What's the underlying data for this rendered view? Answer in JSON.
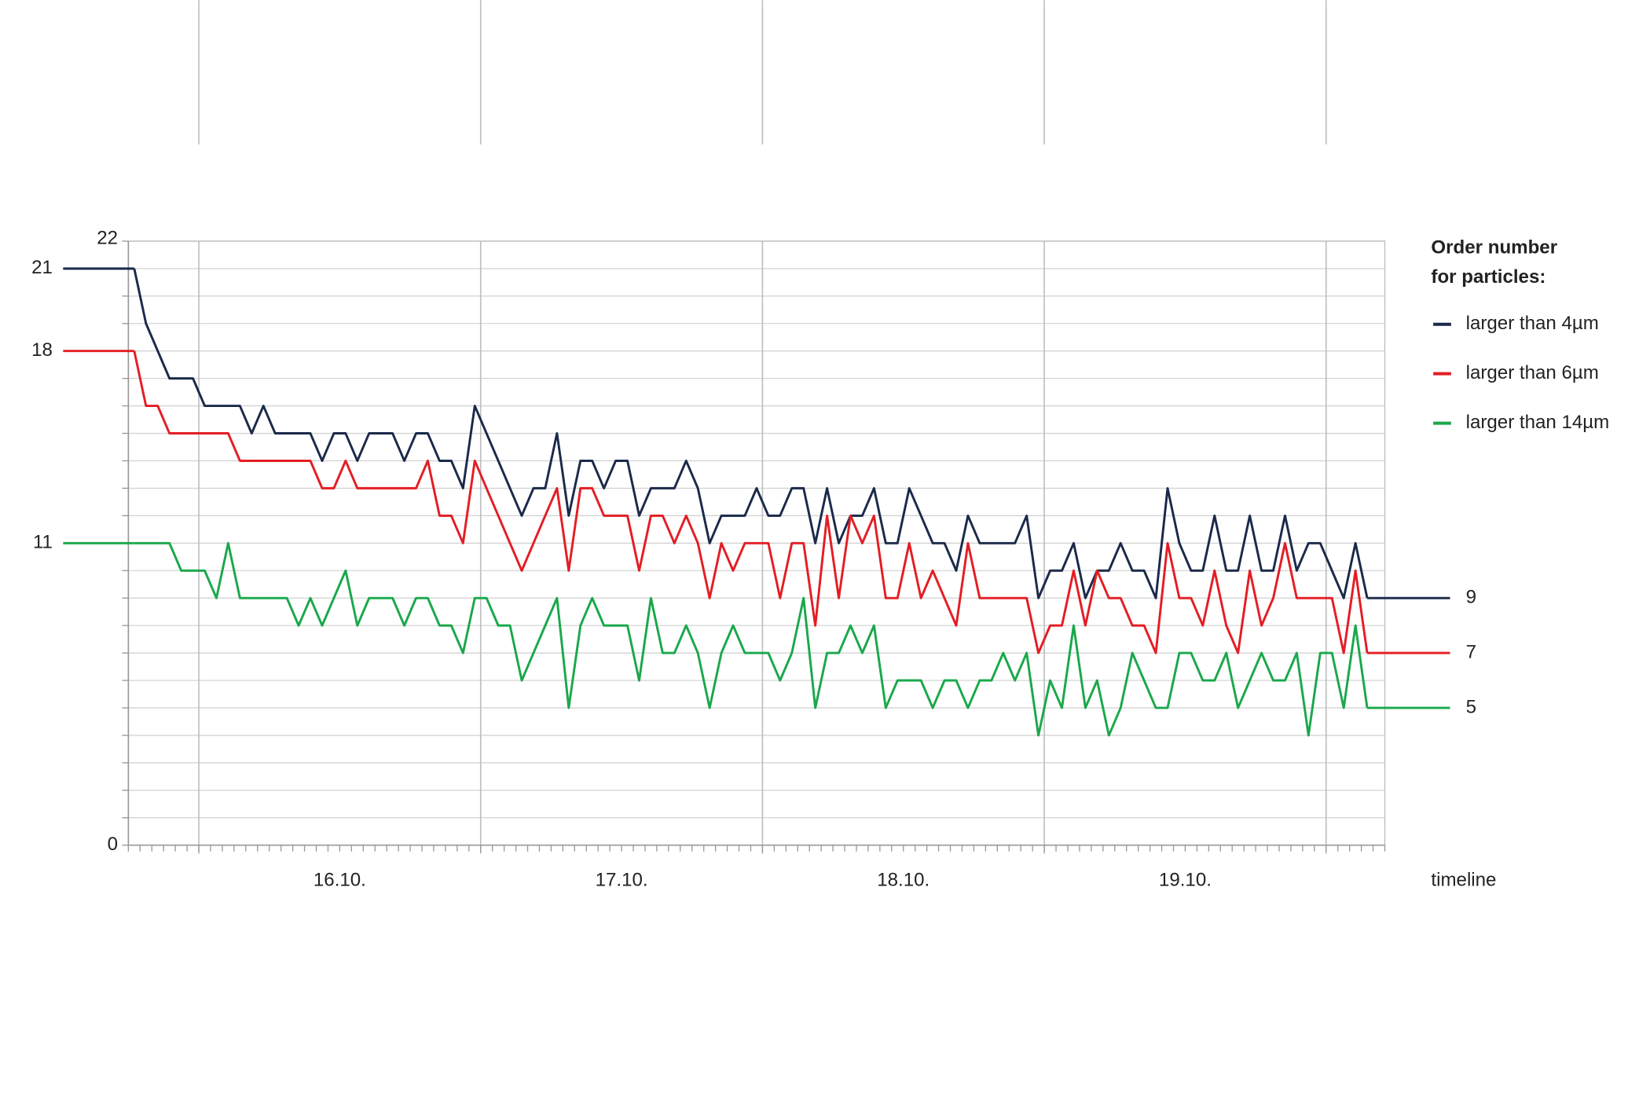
{
  "chart_data": {
    "type": "line",
    "x_label": "timeline",
    "legend_title": [
      "Order number",
      "for particles:"
    ],
    "legend": "right",
    "xlim": [
      0,
      107
    ],
    "xticks": [
      {
        "value": 18,
        "label": "16.10."
      },
      {
        "value": 42,
        "label": "17.10."
      },
      {
        "value": 66,
        "label": "18.10."
      },
      {
        "value": 90,
        "label": "19.10."
      }
    ],
    "xgrid": [
      6,
      30,
      54,
      78,
      102
    ],
    "xminor_step": 1,
    "ylim": [
      0,
      22
    ],
    "yticks": [
      0,
      11,
      18,
      21,
      22
    ],
    "ygrid_step": 1,
    "grid": true,
    "end_labels": true,
    "x": [
      0.5,
      1.5,
      2.5,
      3.5,
      4.5,
      5.5,
      6.5,
      7.5,
      8.5,
      9.5,
      10.5,
      11.5,
      12.5,
      13.5,
      14.5,
      15.5,
      16.5,
      17.5,
      18.5,
      19.5,
      20.5,
      21.5,
      22.5,
      23.5,
      24.5,
      25.5,
      26.5,
      27.5,
      28.5,
      29.5,
      30.5,
      31.5,
      32.5,
      33.5,
      34.5,
      35.5,
      36.5,
      37.5,
      38.5,
      39.5,
      40.5,
      41.5,
      42.5,
      43.5,
      44.5,
      45.5,
      46.5,
      47.5,
      48.5,
      49.5,
      50.5,
      51.5,
      52.5,
      53.5,
      54.5,
      55.5,
      56.5,
      57.5,
      58.5,
      59.5,
      60.5,
      61.5,
      62.5,
      63.5,
      64.5,
      65.5,
      66.5,
      67.5,
      68.5,
      69.5,
      70.5,
      71.5,
      72.5,
      73.5,
      74.5,
      75.5,
      76.5,
      77.5,
      78.5,
      79.5,
      80.5,
      81.5,
      82.5,
      83.5,
      84.5,
      85.5,
      86.5,
      87.5,
      88.5,
      89.5,
      90.5,
      91.5,
      92.5,
      93.5,
      94.5,
      95.5,
      96.5,
      97.5,
      98.5,
      99.5,
      100.5,
      101.5,
      102.5,
      103.5,
      104.5,
      105.5
    ],
    "series": [
      {
        "name": "larger than 4µm",
        "color": "#1b2a4a",
        "values": [
          21,
          19,
          18,
          17,
          17,
          17,
          16,
          16,
          16,
          16,
          15,
          16,
          15,
          15,
          15,
          15,
          14,
          15,
          15,
          14,
          15,
          15,
          15,
          14,
          15,
          15,
          14,
          14,
          13,
          16,
          15,
          14,
          13,
          12,
          13,
          13,
          15,
          12,
          14,
          14,
          13,
          14,
          14,
          12,
          13,
          13,
          13,
          14,
          13,
          11,
          12,
          12,
          12,
          13,
          12,
          12,
          13,
          13,
          11,
          13,
          11,
          12,
          12,
          13,
          11,
          11,
          13,
          12,
          11,
          11,
          10,
          12,
          11,
          11,
          11,
          11,
          12,
          9,
          10,
          10,
          11,
          9,
          10,
          10,
          11,
          10,
          10,
          9,
          13,
          11,
          10,
          10,
          12,
          10,
          10,
          12,
          10,
          10,
          12,
          10,
          11,
          11,
          10,
          9,
          11,
          9
        ]
      },
      {
        "name": "larger than 6µm",
        "color": "#e31e24",
        "values": [
          18,
          16,
          16,
          15,
          15,
          15,
          15,
          15,
          15,
          14,
          14,
          14,
          14,
          14,
          14,
          14,
          13,
          13,
          14,
          13,
          13,
          13,
          13,
          13,
          13,
          14,
          12,
          12,
          11,
          14,
          13,
          12,
          11,
          10,
          11,
          12,
          13,
          10,
          13,
          13,
          12,
          12,
          12,
          10,
          12,
          12,
          11,
          12,
          11,
          9,
          11,
          10,
          11,
          11,
          11,
          9,
          11,
          11,
          8,
          12,
          9,
          12,
          11,
          12,
          9,
          9,
          11,
          9,
          10,
          9,
          8,
          11,
          9,
          9,
          9,
          9,
          9,
          7,
          8,
          8,
          10,
          8,
          10,
          9,
          9,
          8,
          8,
          7,
          11,
          9,
          9,
          8,
          10,
          8,
          7,
          10,
          8,
          9,
          11,
          9,
          9,
          9,
          9,
          7,
          10,
          7
        ]
      },
      {
        "name": "larger than 14µm",
        "color": "#1aa84b",
        "values": [
          11,
          11,
          11,
          11,
          10,
          10,
          10,
          9,
          11,
          9,
          9,
          9,
          9,
          9,
          8,
          9,
          8,
          9,
          10,
          8,
          9,
          9,
          9,
          8,
          9,
          9,
          8,
          8,
          7,
          9,
          9,
          8,
          8,
          6,
          7,
          8,
          9,
          5,
          8,
          9,
          8,
          8,
          8,
          6,
          9,
          7,
          7,
          8,
          7,
          5,
          7,
          8,
          7,
          7,
          7,
          6,
          7,
          9,
          5,
          7,
          7,
          8,
          7,
          8,
          5,
          6,
          6,
          6,
          5,
          6,
          6,
          5,
          6,
          6,
          7,
          6,
          7,
          4,
          6,
          5,
          8,
          5,
          6,
          4,
          5,
          7,
          6,
          5,
          5,
          7,
          7,
          6,
          6,
          7,
          5,
          6,
          7,
          6,
          6,
          7,
          4,
          7,
          7,
          5,
          8,
          5
        ]
      }
    ]
  }
}
